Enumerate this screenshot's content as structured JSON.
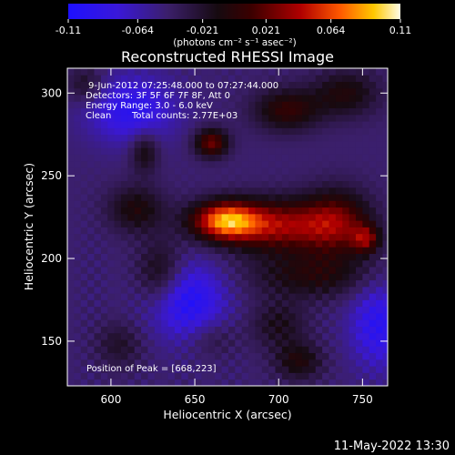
{
  "chart_data": {
    "type": "heatmap",
    "title": "Reconstructed RHESSI Image",
    "xlabel": "Heliocentric X (arcsec)",
    "ylabel": "Heliocentric Y (arcsec)",
    "xlim": [
      574,
      765
    ],
    "ylim": [
      123,
      315
    ],
    "x_ticks": [
      600,
      650,
      700,
      750
    ],
    "y_ticks": [
      150,
      200,
      250,
      300
    ],
    "colorbar": {
      "min": -0.11,
      "max": 0.11,
      "ticks": [
        "-0.11",
        "-0.064",
        "-0.021",
        "0.021",
        "0.064",
        "0.11"
      ],
      "units_label": "(photons cm⁻² s⁻¹ asec⁻²)"
    },
    "annotations": [
      "9-Jun-2012 07:25:48.000 to 07:27:44.000",
      "Detectors: 3F 5F 6F 7F 8F, Att 0",
      "Energy Range: 3.0 - 6.0 keV",
      "Clean",
      "Total counts: 2.77E+03"
    ],
    "peak_label": "Position of Peak = [668,223]",
    "peak_position": [
      668,
      223
    ],
    "sources": [
      {
        "x": 668,
        "y": 223,
        "amp": 0.11,
        "sx": 14,
        "sy": 8
      },
      {
        "x": 700,
        "y": 220,
        "amp": 0.08,
        "sx": 24,
        "sy": 11
      },
      {
        "x": 735,
        "y": 222,
        "amp": 0.06,
        "sx": 14,
        "sy": 14
      },
      {
        "x": 752,
        "y": 212,
        "amp": 0.06,
        "sx": 6,
        "sy": 6
      },
      {
        "x": 660,
        "y": 270,
        "amp": 0.07,
        "sx": 7,
        "sy": 6
      },
      {
        "x": 705,
        "y": 290,
        "amp": 0.05,
        "sx": 14,
        "sy": 9
      },
      {
        "x": 740,
        "y": 300,
        "amp": 0.04,
        "sx": 14,
        "sy": 10
      },
      {
        "x": 620,
        "y": 265,
        "amp": 0.04,
        "sx": 6,
        "sy": 9
      },
      {
        "x": 615,
        "y": 230,
        "amp": 0.04,
        "sx": 12,
        "sy": 10
      },
      {
        "x": 630,
        "y": 190,
        "amp": 0.045,
        "sx": 10,
        "sy": 14
      },
      {
        "x": 720,
        "y": 190,
        "amp": 0.04,
        "sx": 26,
        "sy": 10
      },
      {
        "x": 700,
        "y": 160,
        "amp": 0.03,
        "sx": 12,
        "sy": 10
      },
      {
        "x": 712,
        "y": 138,
        "amp": 0.04,
        "sx": 10,
        "sy": 8
      },
      {
        "x": 585,
        "y": 305,
        "amp": 0.03,
        "sx": 8,
        "sy": 8
      },
      {
        "x": 660,
        "y": 152,
        "amp": 0.02,
        "sx": 10,
        "sy": 8
      },
      {
        "x": 605,
        "y": 148,
        "amp": 0.025,
        "sx": 10,
        "sy": 10
      },
      {
        "x": 612,
        "y": 290,
        "amp": -0.05,
        "sx": 18,
        "sy": 14
      },
      {
        "x": 645,
        "y": 175,
        "amp": -0.06,
        "sx": 16,
        "sy": 16
      },
      {
        "x": 760,
        "y": 160,
        "amp": -0.05,
        "sx": 12,
        "sy": 18
      }
    ]
  },
  "timestamp": "11-May-2022 13:30"
}
